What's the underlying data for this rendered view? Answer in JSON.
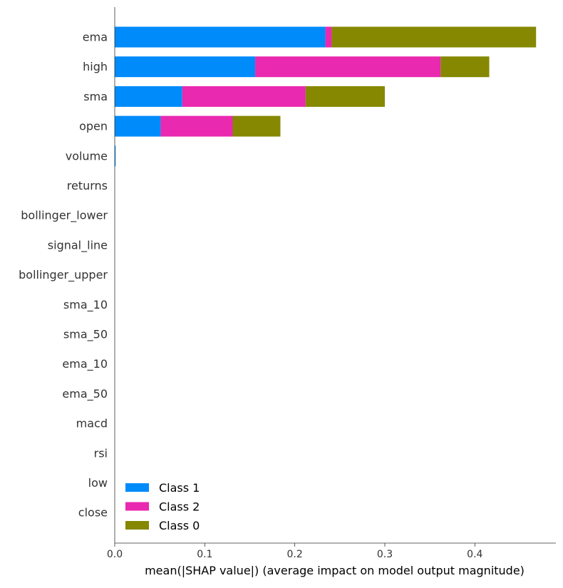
{
  "chart_data": {
    "type": "bar",
    "stacked": true,
    "orientation": "horizontal",
    "categories": [
      "ema",
      "high",
      "sma",
      "open",
      "volume",
      "returns",
      "bollinger_lower",
      "signal_line",
      "bollinger_upper",
      "sma_10",
      "sma_50",
      "ema_10",
      "ema_50",
      "macd",
      "rsi",
      "low",
      "close"
    ],
    "series": [
      {
        "name": "Class 1",
        "color": "#008bfb",
        "values": [
          0.234,
          0.156,
          0.075,
          0.051,
          0.001,
          0,
          0,
          0,
          0,
          0,
          0,
          0,
          0,
          0,
          0,
          0,
          0
        ]
      },
      {
        "name": "Class 2",
        "color": "#e929af",
        "values": [
          0.007,
          0.206,
          0.137,
          0.08,
          0,
          0,
          0,
          0,
          0,
          0,
          0,
          0,
          0,
          0,
          0,
          0,
          0
        ]
      },
      {
        "name": "Class 0",
        "color": "#858800",
        "values": [
          0.227,
          0.054,
          0.088,
          0.053,
          0,
          0,
          0,
          0,
          0,
          0,
          0,
          0,
          0,
          0,
          0,
          0,
          0
        ]
      }
    ],
    "xlabel": "mean(|SHAP value|) (average impact on model output magnitude)",
    "xlim": [
      0,
      0.49
    ],
    "xticks": [
      0.0,
      0.1,
      0.2,
      0.3,
      0.4
    ],
    "xtick_labels": [
      "0.0",
      "0.1",
      "0.2",
      "0.3",
      "0.4"
    ],
    "grid": false,
    "legend": {
      "position": "lower-left",
      "entries": [
        "Class 1",
        "Class 2",
        "Class 0"
      ]
    }
  }
}
